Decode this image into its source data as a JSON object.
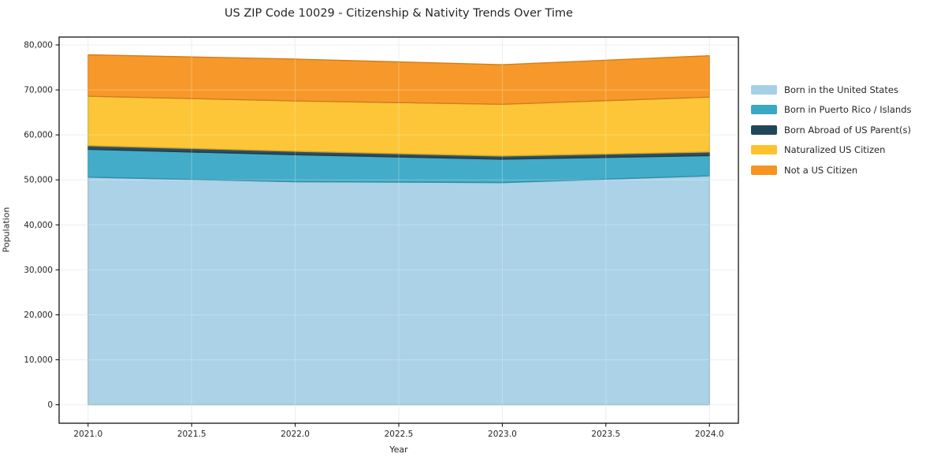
{
  "chart_data": {
    "type": "area",
    "stacked": true,
    "title": "US ZIP Code 10029 - Citizenship & Nativity Trends Over Time",
    "xlabel": "Year",
    "ylabel": "Population",
    "x": [
      2021,
      2022,
      2023,
      2024
    ],
    "series": [
      {
        "name": "Born in the United States",
        "color": "#a6d0e6",
        "values": [
          50600,
          49600,
          49400,
          50900
        ]
      },
      {
        "name": "Born in Puerto Rico / Islands",
        "color": "#39a8c5",
        "values": [
          6200,
          6000,
          5200,
          4500
        ]
      },
      {
        "name": "Born Abroad of US Parent(s)",
        "color": "#21465a",
        "values": [
          800,
          750,
          700,
          800
        ]
      },
      {
        "name": "Naturalized US Citizen",
        "color": "#fcc32d",
        "values": [
          11000,
          11200,
          11500,
          12200
        ]
      },
      {
        "name": "Not a US Citizen",
        "color": "#f7941f",
        "values": [
          9200,
          9300,
          8800,
          9200
        ]
      }
    ],
    "totals": [
      77800,
      76850,
      75600,
      77600
    ],
    "x_tick_labels": [
      "2021.0",
      "2021.5",
      "2022.0",
      "2022.5",
      "2023.0",
      "2023.5",
      "2024.0"
    ],
    "y_tick_labels": [
      "0",
      "10,000",
      "20,000",
      "30,000",
      "40,000",
      "50,000",
      "60,000",
      "70,000",
      "80,000"
    ],
    "xlim": [
      2020.86,
      2024.14
    ],
    "ylim": [
      -4100,
      81750
    ],
    "grid": true,
    "legend_position": "right-outside",
    "frame_color": "#000000",
    "grid_color": "#e8e8e8",
    "text_color": "#262626"
  }
}
